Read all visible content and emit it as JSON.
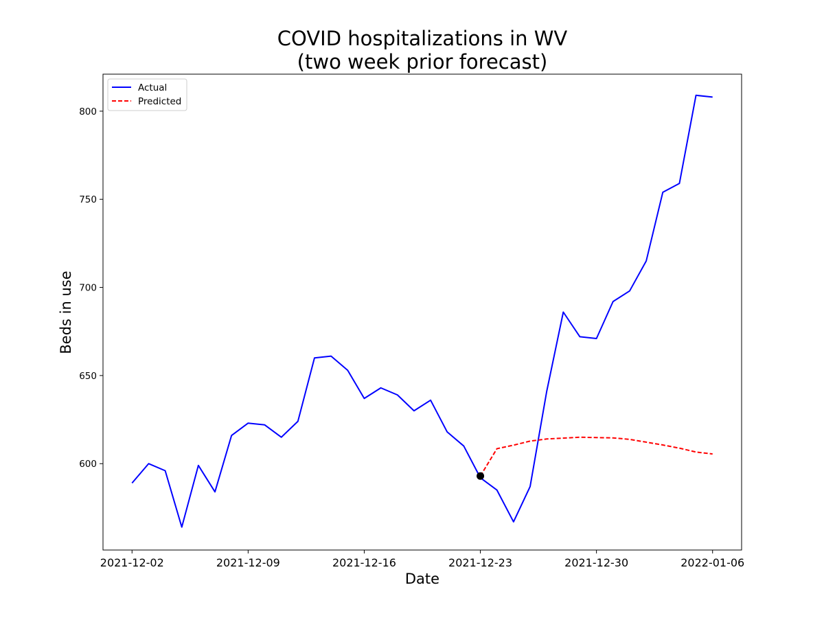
{
  "chart_data": {
    "type": "line",
    "title_line1": "COVID hospitalizations in WV",
    "title_line2": "(two week prior forecast)",
    "xlabel": "Date",
    "ylabel": "Beds in use",
    "x_ticks": [
      "2021-12-02",
      "2021-12-09",
      "2021-12-16",
      "2021-12-23",
      "2021-12-30",
      "2022-01-06"
    ],
    "y_ticks": [
      600,
      650,
      700,
      750,
      800
    ],
    "xlim": [
      "2021-12-00.25",
      "2022-01-07.75"
    ],
    "ylim": [
      551,
      821
    ],
    "legend_position": "upper-left",
    "grid": false,
    "series": [
      {
        "name": "Actual",
        "color": "#0000ff",
        "style": "solid",
        "points": [
          [
            "2021-12-02",
            589
          ],
          [
            "2021-12-03",
            600
          ],
          [
            "2021-12-04",
            596
          ],
          [
            "2021-12-05",
            564
          ],
          [
            "2021-12-06",
            599
          ],
          [
            "2021-12-07",
            584
          ],
          [
            "2021-12-08",
            616
          ],
          [
            "2021-12-09",
            623
          ],
          [
            "2021-12-10",
            622
          ],
          [
            "2021-12-11",
            615
          ],
          [
            "2021-12-12",
            624
          ],
          [
            "2021-12-13",
            660
          ],
          [
            "2021-12-14",
            661
          ],
          [
            "2021-12-15",
            653
          ],
          [
            "2021-12-16",
            637
          ],
          [
            "2021-12-17",
            643
          ],
          [
            "2021-12-18",
            639
          ],
          [
            "2021-12-19",
            630
          ],
          [
            "2021-12-20",
            636
          ],
          [
            "2021-12-21",
            618
          ],
          [
            "2021-12-22",
            610
          ],
          [
            "2021-12-23",
            592
          ],
          [
            "2021-12-24",
            585
          ],
          [
            "2021-12-25",
            567
          ],
          [
            "2021-12-26",
            587
          ],
          [
            "2021-12-27",
            641
          ],
          [
            "2021-12-28",
            686
          ],
          [
            "2021-12-29",
            672
          ],
          [
            "2021-12-30",
            671
          ],
          [
            "2021-12-31",
            692
          ],
          [
            "2022-01-01",
            698
          ],
          [
            "2022-01-02",
            715
          ],
          [
            "2022-01-03",
            754
          ],
          [
            "2022-01-04",
            759
          ],
          [
            "2022-01-05",
            809
          ],
          [
            "2022-01-06",
            808
          ]
        ]
      },
      {
        "name": "Predicted",
        "color": "#ff0000",
        "style": "dashed",
        "points": [
          [
            "2021-12-23",
            593
          ],
          [
            "2021-12-24",
            608.5
          ],
          [
            "2021-12-25",
            610.5
          ],
          [
            "2021-12-26",
            612.8
          ],
          [
            "2021-12-27",
            614
          ],
          [
            "2021-12-28",
            614.5
          ],
          [
            "2021-12-29",
            615
          ],
          [
            "2021-12-30",
            614.8
          ],
          [
            "2021-12-31",
            614.6
          ],
          [
            "2022-01-01",
            613.8
          ],
          [
            "2022-01-02",
            612.2
          ],
          [
            "2022-01-03",
            610.6
          ],
          [
            "2022-01-04",
            608.8
          ],
          [
            "2022-01-05",
            606.6
          ],
          [
            "2022-01-06",
            605.5
          ]
        ]
      }
    ],
    "marker": {
      "date": "2021-12-23",
      "value": 593,
      "color": "#000000"
    }
  }
}
